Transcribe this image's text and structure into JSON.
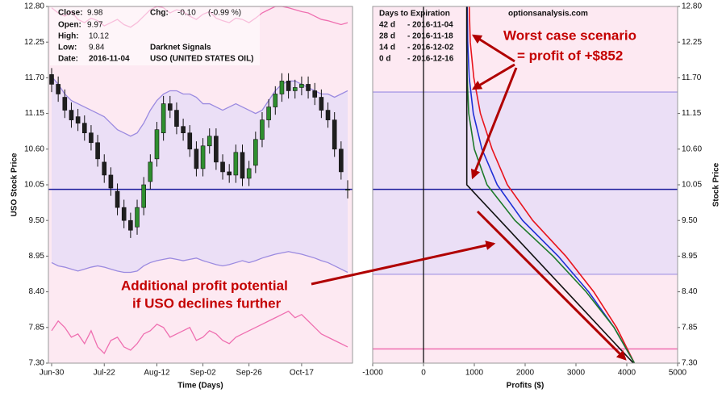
{
  "chart_data": [
    {
      "type": "candlestick",
      "ylabel": "USO Stock Price",
      "xlabel": "Time (Days)",
      "categories": [
        "Jun-30",
        null,
        null,
        null,
        null,
        null,
        null,
        null,
        "Jul-22",
        null,
        null,
        null,
        null,
        null,
        null,
        null,
        "Aug-12",
        null,
        null,
        null,
        null,
        null,
        null,
        "Sep-02",
        null,
        null,
        null,
        null,
        null,
        null,
        "Sep-26",
        null,
        null,
        null,
        null,
        null,
        null,
        null,
        "Oct-17",
        null,
        null,
        null,
        null,
        null,
        null,
        null
      ],
      "open": [
        11.75,
        11.6,
        11.4,
        11.2,
        11.1,
        11.0,
        10.85,
        10.7,
        10.4,
        10.2,
        9.95,
        9.7,
        9.5,
        9.4,
        9.7,
        10.1,
        10.45,
        10.85,
        11.3,
        11.2,
        10.95,
        10.85,
        10.6,
        10.3,
        10.65,
        10.8,
        10.4,
        10.25,
        10.2,
        10.55,
        10.15,
        10.35,
        10.75,
        11.05,
        11.25,
        11.45,
        11.65,
        11.5,
        11.55,
        11.6,
        11.5,
        11.4,
        11.2,
        11.05,
        10.6,
        9.97
      ],
      "high": [
        11.85,
        11.72,
        11.52,
        11.32,
        11.22,
        11.12,
        10.97,
        10.82,
        10.52,
        10.32,
        10.07,
        9.82,
        9.62,
        9.82,
        10.17,
        10.52,
        11.02,
        11.42,
        11.42,
        11.32,
        11.07,
        10.97,
        10.72,
        10.77,
        10.92,
        10.92,
        10.52,
        10.37,
        10.67,
        10.67,
        10.42,
        10.87,
        11.17,
        11.37,
        11.57,
        11.77,
        11.77,
        11.67,
        11.72,
        11.72,
        11.62,
        11.52,
        11.32,
        11.17,
        10.72,
        10.12
      ],
      "low": [
        11.48,
        11.33,
        11.08,
        10.93,
        10.88,
        10.73,
        10.58,
        10.33,
        10.08,
        9.88,
        9.58,
        9.38,
        9.23,
        9.28,
        9.58,
        9.98,
        10.33,
        10.73,
        11.08,
        10.83,
        10.73,
        10.48,
        10.18,
        10.18,
        10.53,
        10.28,
        10.13,
        10.08,
        10.08,
        10.03,
        10.03,
        10.23,
        10.63,
        10.93,
        11.13,
        11.33,
        11.38,
        11.38,
        11.43,
        11.38,
        11.28,
        11.08,
        10.93,
        10.48,
        10.13,
        9.84
      ],
      "close": [
        11.6,
        11.45,
        11.2,
        11.05,
        11.0,
        10.85,
        10.7,
        10.45,
        10.2,
        10.0,
        9.7,
        9.5,
        9.35,
        9.7,
        10.05,
        10.4,
        10.9,
        11.3,
        11.2,
        10.95,
        10.85,
        10.6,
        10.3,
        10.65,
        10.8,
        10.4,
        10.25,
        10.2,
        10.55,
        10.15,
        10.3,
        10.75,
        11.05,
        11.25,
        11.45,
        11.65,
        11.5,
        11.55,
        11.6,
        11.5,
        11.4,
        11.2,
        11.05,
        10.6,
        10.25,
        9.98
      ],
      "up_color": "#2f8f2f",
      "down_color": "#1f1f1f",
      "bands": [
        {
          "color": "#9b8ae0",
          "values": [
            11.72,
            11.6,
            11.45,
            11.35,
            11.3,
            11.25,
            11.2,
            11.15,
            11.1,
            11.0,
            10.9,
            10.85,
            10.8,
            10.85,
            11.0,
            11.2,
            11.35,
            11.45,
            11.5,
            11.5,
            11.45,
            11.45,
            11.4,
            11.3,
            11.3,
            11.25,
            11.2,
            11.25,
            11.3,
            11.25,
            11.2,
            11.15,
            11.2,
            11.35,
            11.5,
            11.6,
            11.65,
            11.65,
            11.6,
            11.55,
            11.5,
            11.45,
            11.45,
            11.4,
            11.45,
            11.5
          ]
        },
        {
          "color": "#9b8ae0",
          "values": [
            8.85,
            8.8,
            8.78,
            8.75,
            8.72,
            8.75,
            8.78,
            8.8,
            8.78,
            8.75,
            8.72,
            8.7,
            8.7,
            8.72,
            8.8,
            8.85,
            8.88,
            8.9,
            8.92,
            8.9,
            8.88,
            8.9,
            8.92,
            8.88,
            8.85,
            8.82,
            8.8,
            8.82,
            8.85,
            8.88,
            8.85,
            8.88,
            8.92,
            8.95,
            8.98,
            9.0,
            9.02,
            9.0,
            8.98,
            8.95,
            8.92,
            8.88,
            8.85,
            8.8,
            8.75,
            8.7
          ]
        },
        {
          "color": "#ef6fb0",
          "values": [
            12.78,
            12.7,
            12.65,
            12.72,
            12.6,
            12.55,
            12.62,
            12.58,
            12.5,
            12.55,
            12.6,
            12.52,
            12.48,
            12.55,
            12.65,
            12.75,
            12.8,
            12.78,
            12.7,
            12.75,
            12.72,
            12.65,
            12.6,
            12.68,
            12.72,
            12.62,
            12.58,
            12.55,
            12.62,
            12.6,
            12.55,
            12.62,
            12.7,
            12.75,
            12.8,
            12.8,
            12.78,
            12.75,
            12.72,
            12.7,
            12.65,
            12.6,
            12.58,
            12.55,
            12.52,
            12.55
          ]
        },
        {
          "color": "#ef6fb0",
          "values": [
            7.8,
            7.95,
            7.85,
            7.7,
            7.75,
            7.6,
            7.8,
            7.55,
            7.45,
            7.65,
            7.7,
            7.55,
            7.5,
            7.6,
            7.75,
            7.8,
            7.9,
            7.85,
            7.7,
            7.75,
            7.8,
            7.85,
            7.65,
            7.7,
            7.8,
            7.75,
            7.65,
            7.6,
            7.7,
            7.75,
            7.8,
            7.85,
            7.9,
            7.95,
            8.0,
            8.05,
            8.1,
            8.0,
            8.05,
            7.95,
            7.85,
            7.75,
            7.7,
            7.65,
            7.6,
            7.55
          ]
        }
      ],
      "current_price": 9.98,
      "price_line_color": "#1b1b9c",
      "ylim": [
        7.3,
        12.8
      ],
      "yticks": [
        {
          "value": 7.3,
          "label": "7.30"
        },
        7.85,
        {
          "value": 8.4,
          "label": "8.40"
        },
        8.95,
        {
          "value": 9.5,
          "label": "9.50"
        },
        10.05,
        {
          "value": 10.6,
          "label": "10.60"
        },
        11.15,
        {
          "value": 11.7,
          "label": "11.70"
        },
        12.25,
        {
          "value": 12.8,
          "label": "12.80"
        }
      ],
      "info": [
        {
          "label": "Close:",
          "value": "9.98"
        },
        {
          "label": "Open:",
          "value": "9.97"
        },
        {
          "label": "High:",
          "value": "10.12"
        },
        {
          "label": "Low:",
          "value": "9.84"
        },
        {
          "label": "Date:",
          "value": "2016-11-04"
        }
      ],
      "change": {
        "label": "Chg:",
        "value": "-0.10",
        "percent": "(-0.99 %)"
      },
      "signal": "Darknet Signals",
      "symbol": "USO (UNITED STATES OIL)"
    },
    {
      "type": "line",
      "title": "Days to Expiration",
      "source": "optionsanalysis.com",
      "xlabel": "Profits ($)",
      "ylabel": "Stock Price",
      "series": [
        {
          "name": "42 d",
          "date": "- 2016-11-04",
          "color": "#e8141c",
          "x": [
            900,
            920,
            990,
            1120,
            1350,
            1650,
            2150,
            2800,
            3350,
            3800,
            4150
          ],
          "y": [
            12.8,
            12.25,
            11.7,
            11.15,
            10.6,
            10.05,
            9.5,
            8.95,
            8.4,
            7.85,
            7.3
          ]
        },
        {
          "name": "28 d",
          "date": "- 2016-11-18",
          "color": "#1f2fd6",
          "x": [
            860,
            870,
            900,
            980,
            1150,
            1450,
            1950,
            2650,
            3250,
            3750,
            4150
          ],
          "y": [
            12.8,
            12.25,
            11.7,
            11.15,
            10.6,
            10.05,
            9.5,
            8.95,
            8.4,
            7.85,
            7.3
          ]
        },
        {
          "name": "14 d",
          "date": "- 2016-12-02",
          "color": "#1e7a2a",
          "x": [
            852,
            852,
            860,
            890,
            1000,
            1250,
            1800,
            2550,
            3200,
            3750,
            4150
          ],
          "y": [
            12.8,
            12.25,
            11.7,
            11.15,
            10.6,
            10.05,
            9.5,
            8.95,
            8.4,
            7.85,
            7.3
          ]
        },
        {
          "name": "0 d",
          "date": "- 2016-12-16",
          "color": "#111111",
          "x": [
            852,
            852,
            4130
          ],
          "y": [
            12.8,
            10.05,
            7.3
          ]
        }
      ],
      "xlim": [
        -1000,
        5000
      ],
      "xticks": [
        -1000,
        0,
        1000,
        2000,
        3000,
        4000,
        5000
      ],
      "ylim": [
        7.3,
        12.8
      ],
      "yticks": [
        {
          "value": 7.3,
          "label": "7.30"
        },
        7.85,
        {
          "value": 8.4,
          "label": "8.40"
        },
        8.95,
        {
          "value": 9.5,
          "label": "9.50"
        },
        10.05,
        {
          "value": 10.6,
          "label": "10.60"
        },
        11.15,
        {
          "value": 11.7,
          "label": "11.70"
        },
        12.25,
        {
          "value": 12.8,
          "label": "12.80"
        }
      ],
      "current_price": 9.98,
      "range_lines": [
        11.48,
        8.67
      ],
      "floor_line": 7.52
    }
  ],
  "annotations": [
    "Worst case scenario",
    "= profit of +$852",
    "Additional profit potential",
    "if USO declines further"
  ]
}
